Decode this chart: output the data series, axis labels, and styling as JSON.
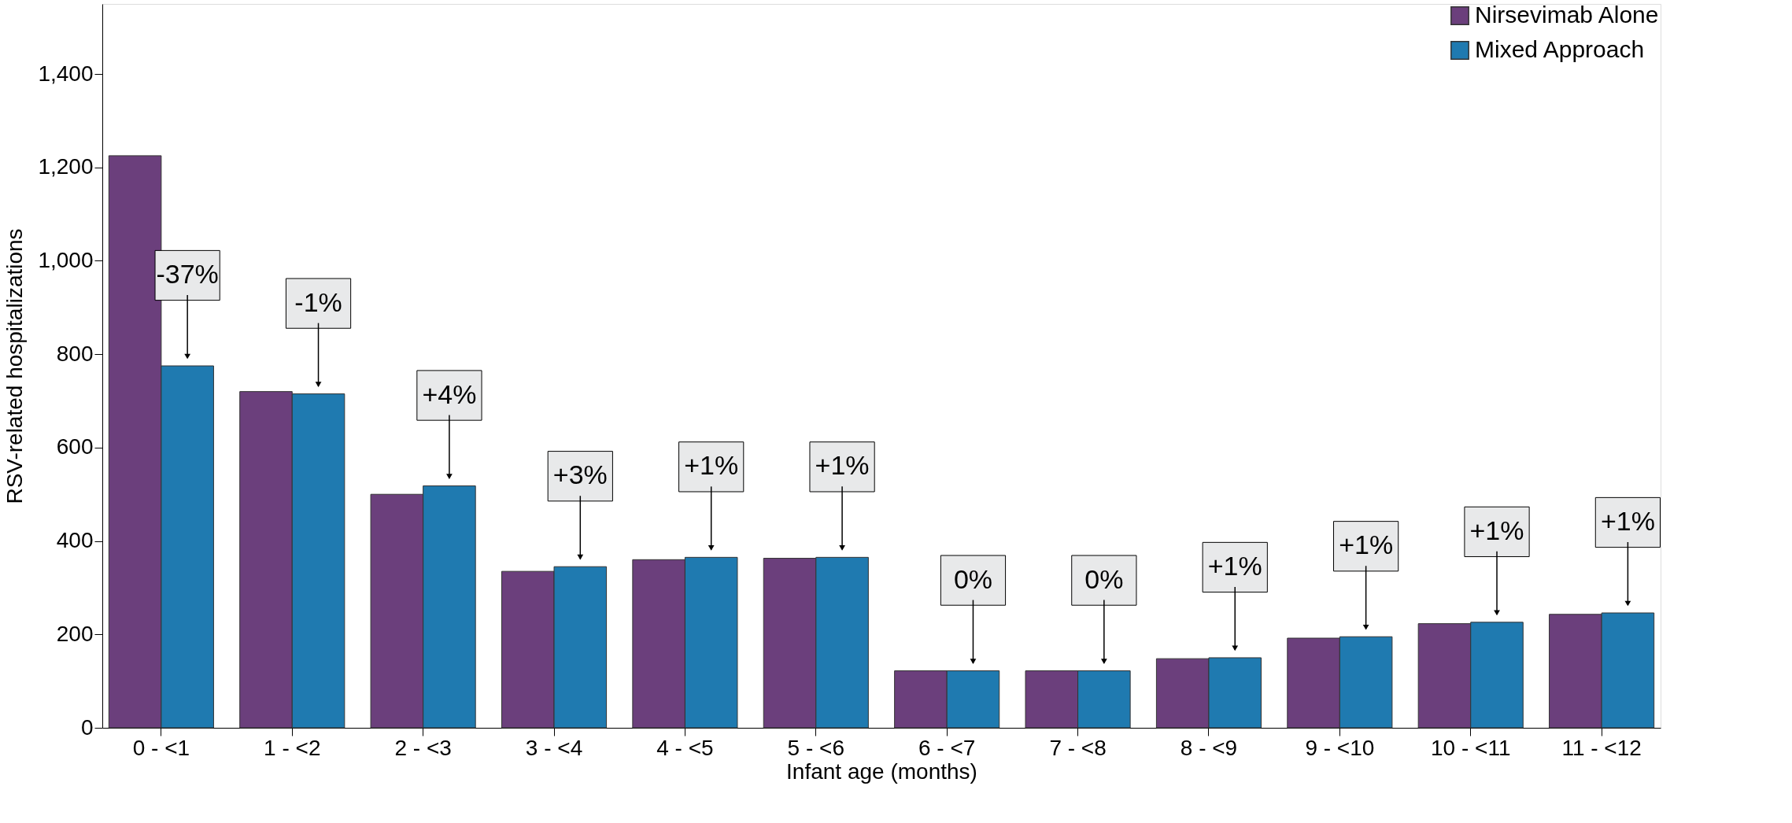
{
  "chart_data": {
    "type": "bar",
    "xlabel": "Infant age (months)",
    "ylabel": "RSV-related hospitalizations",
    "categories": [
      "0 - <1",
      "1 - <2",
      "2 - <3",
      "3 - <4",
      "4 - <5",
      "5 - <6",
      "6 - <7",
      "7 - <8",
      "8 - <9",
      "9 - <10",
      "10 - <11",
      "11 - <12"
    ],
    "series": [
      {
        "name": "Nirsevimab Alone",
        "color": "#6b3f7c",
        "values": [
          1225,
          720,
          500,
          335,
          360,
          363,
          122,
          122,
          148,
          192,
          223,
          243
        ]
      },
      {
        "name": "Mixed Approach",
        "color": "#1f7ab0",
        "values": [
          775,
          715,
          518,
          345,
          365,
          365,
          122,
          122,
          150,
          195,
          226,
          246
        ]
      }
    ],
    "ylim": [
      0,
      1550
    ],
    "yticks": [
      0,
      200,
      400,
      600,
      800,
      {
        "value": 1000,
        "label": "1,000"
      },
      {
        "value": 1200,
        "label": "1,200"
      },
      {
        "value": 1400,
        "label": "1,400"
      }
    ],
    "grid": false,
    "legend": "top right",
    "annotations": [
      {
        "text": "-37%",
        "x": "0 - <1",
        "y": 775
      },
      {
        "text": "-1%",
        "x": "1 - <2",
        "y": 715
      },
      {
        "text": "+4%",
        "x": "2 - <3",
        "y": 518
      },
      {
        "text": "+3%",
        "x": "3 - <4",
        "y": 345
      },
      {
        "text": "+1%",
        "x": "4 - <5",
        "y": 365
      },
      {
        "text": "+1%",
        "x": "5 - <6",
        "y": 365
      },
      {
        "text": "0%",
        "x": "6 - <7",
        "y": 122
      },
      {
        "text": "0%",
        "x": "7 - <8",
        "y": 122
      },
      {
        "text": "+1%",
        "x": "8 - <9",
        "y": 150
      },
      {
        "text": "+1%",
        "x": "9 - <10",
        "y": 195
      },
      {
        "text": "+1%",
        "x": "10 - <11",
        "y": 226
      },
      {
        "text": "+1%",
        "x": "11 - <12",
        "y": 246
      }
    ]
  }
}
